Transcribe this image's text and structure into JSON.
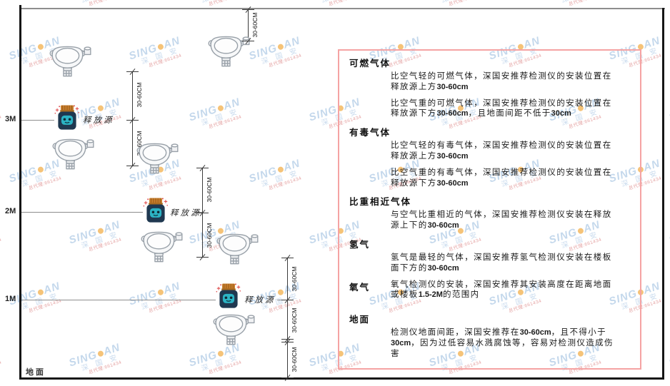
{
  "watermark": {
    "brand_left": "SING",
    "brand_right": "AN",
    "cn": "深 国 安",
    "agent_line": "总代理:661434"
  },
  "diagram": {
    "axis_labels": {
      "m3": "3M",
      "m2": "2M",
      "m1": "1M"
    },
    "ground_label": "地面",
    "dim_label": "30-60CM",
    "source_label": "释放源"
  },
  "panel": {
    "border_color": "#f5a3a3",
    "sections": [
      {
        "heading": "可燃气体",
        "inline": false,
        "paragraphs": [
          "比空气轻的可燃气体，深国安推荐检测仪的安装位置在释放源上方30-60cm",
          "比空气重的可燃气体，深国安推荐检测仪的安装位置在释放源下方30-60cm，且地面间距不低于30cm"
        ]
      },
      {
        "heading": "有毒气体",
        "inline": false,
        "paragraphs": [
          "比空气轻的有毒气体，深国安推荐检测仪的安装位置在释放源上方30-60cm",
          "比空气重的有毒气体，深国安推荐检测仪的安装位置在释放源下方30-60cm"
        ]
      },
      {
        "heading": "比重相近气体",
        "inline": false,
        "paragraphs": [
          "与空气比重相近的气体，深国安推荐检测仪安装在释放源上下的30-60cm"
        ]
      },
      {
        "heading": "氢气",
        "inline": false,
        "paragraphs": [
          "氢气是最轻的气体，深国安推荐氢气检测仪安装在楼板面下方的30-60cm"
        ]
      },
      {
        "heading": "氧气",
        "inline": true,
        "paragraphs": [
          "氧气检测仪的安装，深国安推荐其安装高度在距离地面或楼板1.5-2M的范围内"
        ]
      },
      {
        "heading": "地面",
        "inline": false,
        "paragraphs": [
          "检测仪地面间距，深国安推荐在30-60cm，且不得小于30cm，因为过低容易水溅腐蚀等，容易对检测仪造成伤害"
        ]
      }
    ]
  },
  "colors": {
    "panel_border": "#f5a3a3",
    "frame": "#161616",
    "dim_line": "#3c3c3c",
    "source_body": "#1f3850",
    "source_face": "#2cb3c4",
    "source_cap": "#c97e2d",
    "sparkle_red": "#e05050",
    "detector_stroke": "#98a0a8",
    "watermark_blue": "#94b8dd",
    "watermark_dot": "#f0a32f"
  }
}
